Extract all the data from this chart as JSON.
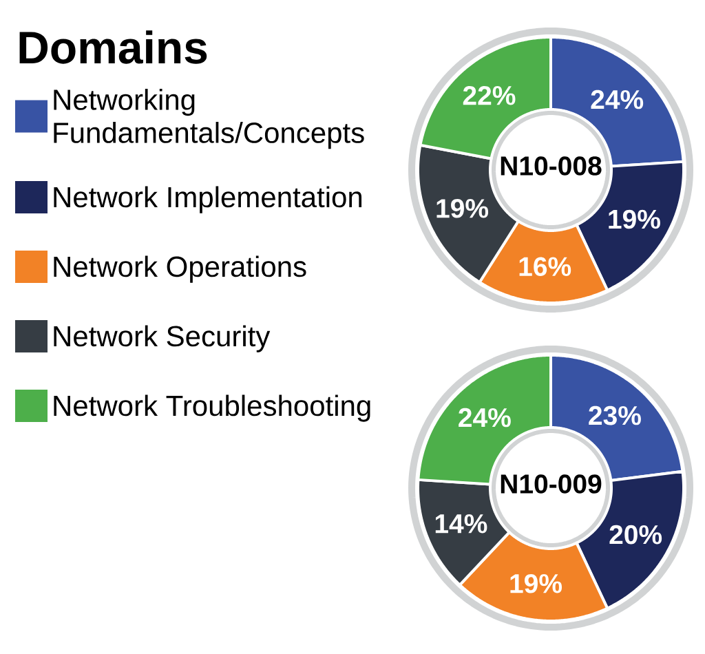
{
  "chart_data": [
    {
      "type": "donut",
      "title": "N10-008",
      "legend_title": "Domains",
      "legend": "left",
      "categories": [
        "Networking Fundamentals/Concepts",
        "Network Implementation",
        "Network Operations",
        "Network Security",
        "Network Troubleshooting"
      ],
      "values": [
        24,
        19,
        16,
        19,
        22
      ],
      "value_labels": [
        "24%",
        "19%",
        "16%",
        "19%",
        "22%"
      ],
      "colors": [
        "#3853a4",
        "#1d275a",
        "#f28226",
        "#363d44",
        "#4daf4a"
      ]
    },
    {
      "type": "donut",
      "title": "N10-009",
      "categories": [
        null,
        null,
        null,
        null,
        null
      ],
      "values": [
        23,
        20,
        19,
        14,
        24
      ],
      "value_labels": [
        "23%",
        "20%",
        "19%",
        "14%",
        "24%"
      ],
      "colors": [
        "#3853a4",
        "#1d275a",
        "#f28226",
        "#363d44",
        "#4daf4a"
      ]
    }
  ]
}
